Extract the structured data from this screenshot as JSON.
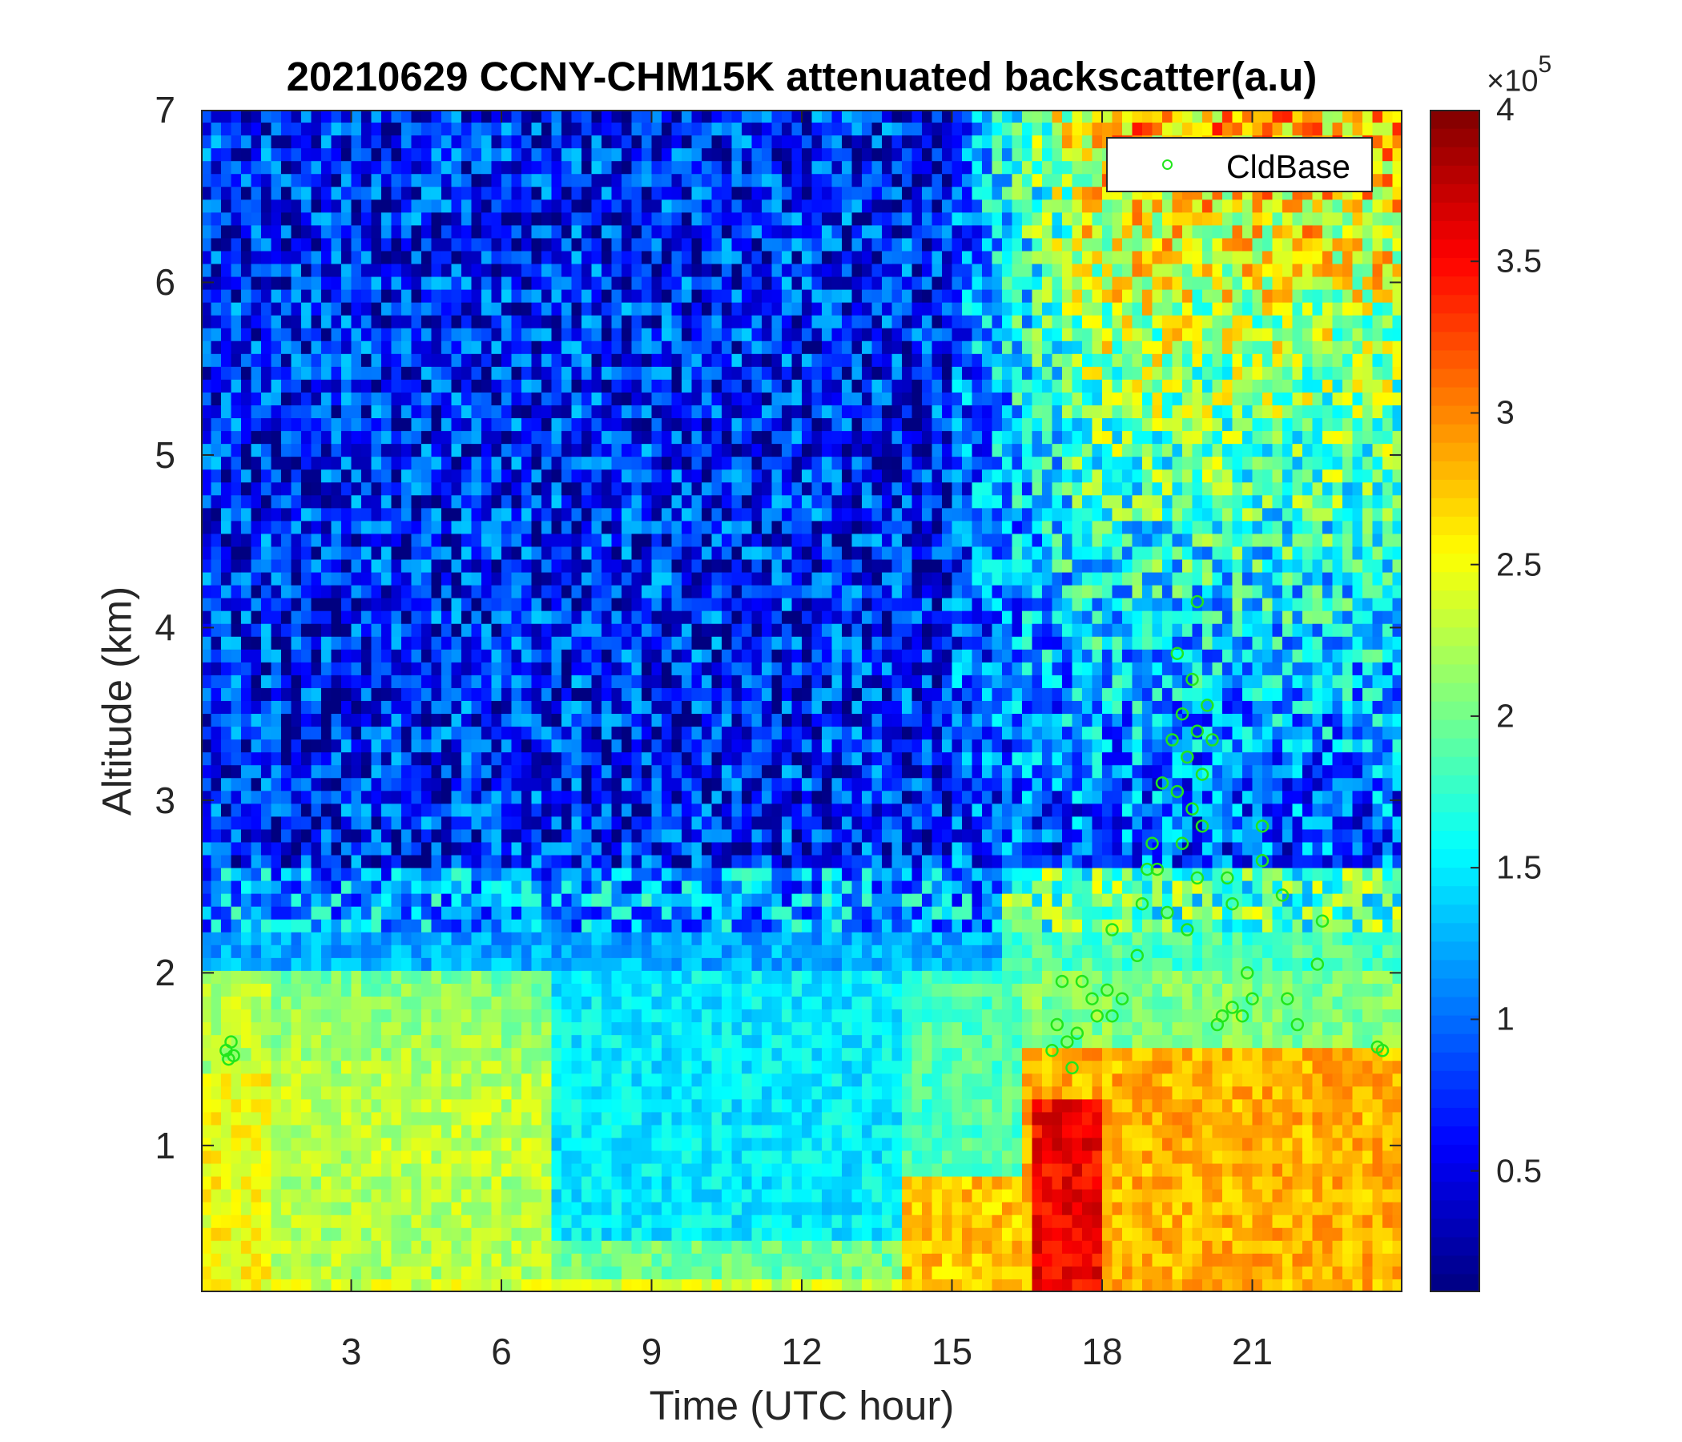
{
  "chart_data": {
    "type": "heatmap",
    "title": "20210629 CCNY-CHM15K attenuated backscatter(a.u)",
    "xlabel": "Time (UTC hour)",
    "ylabel": "Altitude (km)",
    "xlim": [
      0,
      24
    ],
    "ylim": [
      0.15,
      7
    ],
    "x_ticks": [
      "3",
      "6",
      "9",
      "12",
      "15",
      "18",
      "21"
    ],
    "x_tick_values": [
      3,
      6,
      9,
      12,
      15,
      18,
      21
    ],
    "y_ticks": [
      "1",
      "2",
      "3",
      "4",
      "5",
      "6",
      "7"
    ],
    "y_tick_values": [
      1,
      2,
      3,
      4,
      5,
      6,
      7
    ],
    "colormap": "jet",
    "colorbar": {
      "range": [
        10000,
        400000
      ],
      "ticks": [
        "0.5",
        "1",
        "1.5",
        "2",
        "2.5",
        "3",
        "3.5",
        "4"
      ],
      "tick_values": [
        0.5,
        1,
        1.5,
        2,
        2.5,
        3,
        3.5,
        4
      ],
      "multiplier": "×10",
      "exponent": "5"
    },
    "legend": {
      "entries": [
        "CldBase"
      ],
      "placement": "top-right"
    },
    "series": [
      {
        "name": "CldBase",
        "type": "scatter",
        "marker": "circle",
        "color": "#21e61b",
        "points": [
          [
            0.5,
            1.55
          ],
          [
            0.55,
            1.5
          ],
          [
            0.6,
            1.6
          ],
          [
            0.65,
            1.52
          ],
          [
            17.0,
            1.55
          ],
          [
            17.1,
            1.7
          ],
          [
            17.2,
            1.95
          ],
          [
            17.3,
            1.6
          ],
          [
            17.4,
            1.45
          ],
          [
            17.5,
            1.65
          ],
          [
            17.6,
            1.95
          ],
          [
            17.8,
            1.85
          ],
          [
            17.9,
            1.75
          ],
          [
            18.1,
            1.9
          ],
          [
            18.2,
            2.25
          ],
          [
            18.2,
            1.75
          ],
          [
            18.4,
            1.85
          ],
          [
            18.7,
            2.1
          ],
          [
            18.8,
            2.4
          ],
          [
            18.9,
            2.6
          ],
          [
            19.0,
            2.75
          ],
          [
            19.1,
            2.6
          ],
          [
            19.2,
            3.1
          ],
          [
            19.3,
            2.35
          ],
          [
            19.4,
            3.35
          ],
          [
            19.5,
            3.05
          ],
          [
            19.5,
            3.85
          ],
          [
            19.6,
            3.5
          ],
          [
            19.6,
            2.75
          ],
          [
            19.7,
            3.25
          ],
          [
            19.7,
            2.25
          ],
          [
            19.8,
            3.7
          ],
          [
            19.8,
            2.95
          ],
          [
            19.9,
            4.15
          ],
          [
            19.9,
            3.4
          ],
          [
            19.9,
            2.55
          ],
          [
            20.0,
            3.15
          ],
          [
            20.0,
            2.85
          ],
          [
            20.1,
            3.55
          ],
          [
            20.2,
            3.35
          ],
          [
            20.3,
            1.7
          ],
          [
            20.4,
            1.75
          ],
          [
            20.5,
            2.55
          ],
          [
            20.6,
            1.8
          ],
          [
            20.6,
            2.4
          ],
          [
            20.8,
            1.75
          ],
          [
            20.9,
            2.0
          ],
          [
            21.0,
            1.85
          ],
          [
            21.2,
            2.65
          ],
          [
            21.2,
            2.85
          ],
          [
            21.6,
            2.45
          ],
          [
            21.7,
            1.85
          ],
          [
            21.9,
            1.7
          ],
          [
            22.3,
            2.05
          ],
          [
            22.4,
            2.3
          ],
          [
            23.5,
            1.57
          ],
          [
            23.6,
            1.55
          ]
        ]
      }
    ]
  }
}
